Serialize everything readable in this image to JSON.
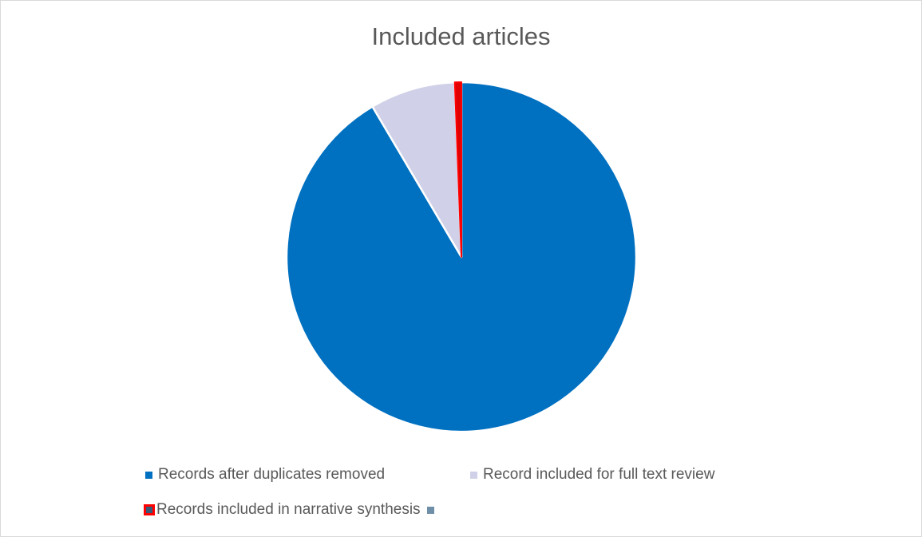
{
  "chart_data": {
    "type": "pie",
    "title": "Included articles",
    "legend_position": "bottom",
    "start_angle_deg": 0,
    "slices": [
      {
        "label": "Records after duplicates removed",
        "value": 91.5,
        "color": "#0070c0"
      },
      {
        "label": "Record included for full text review",
        "value": 7.9,
        "color": "#d0d0e8"
      },
      {
        "label": "Records included in narrative synthesis",
        "value": 0.6,
        "color": "#e00000",
        "outline": "#ff0000"
      },
      {
        "label": "",
        "value": 0,
        "color": "#6f8fa8"
      }
    ]
  }
}
